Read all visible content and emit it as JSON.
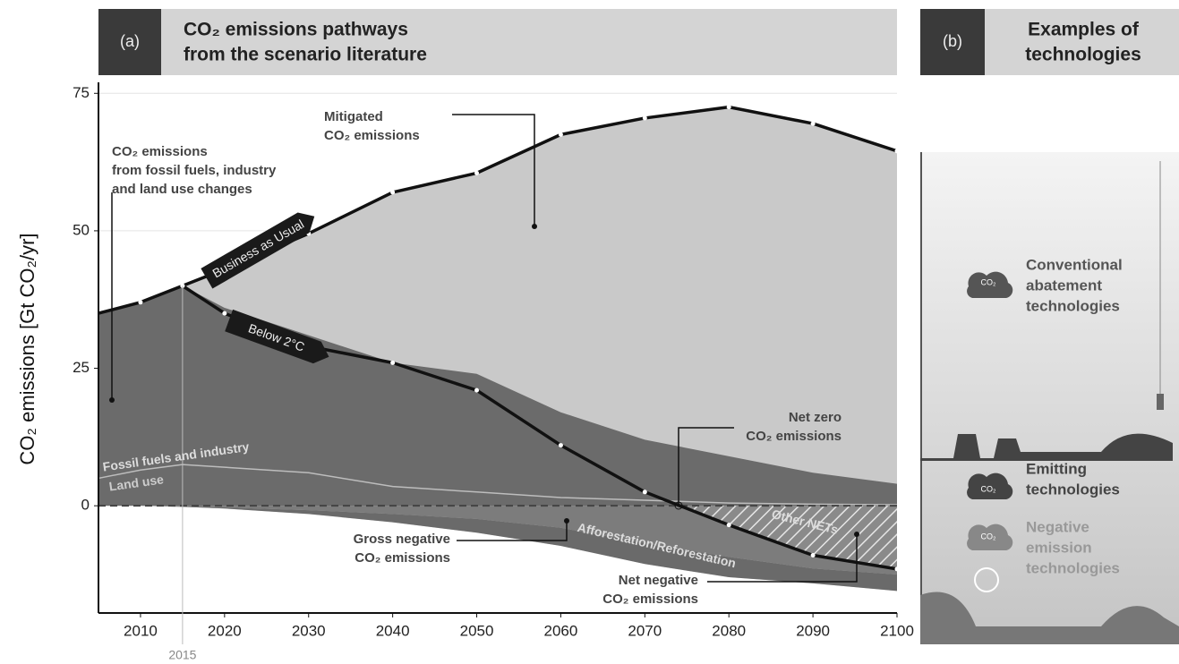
{
  "chart_data": {
    "type": "area",
    "panel_label": "(a)",
    "title": [
      "CO₂ emissions pathways",
      "from the scenario literature"
    ],
    "y_label": "CO₂ emissions [Gt CO₂/yr]",
    "x": [
      2005,
      2010,
      2015,
      2020,
      2030,
      2040,
      2050,
      2060,
      2070,
      2080,
      2090,
      2100
    ],
    "xlim": [
      2005,
      2100
    ],
    "xticks": [
      2010,
      2015,
      2020,
      2030,
      2040,
      2050,
      2060,
      2070,
      2080,
      2090,
      2100
    ],
    "ylim": [
      -19.5,
      77
    ],
    "yticks": [
      0,
      25,
      50,
      75
    ],
    "grid": true,
    "series": [
      {
        "name": "Business as Usual",
        "color": "#111111",
        "fill": "#c9c9c9",
        "values": [
          35,
          37,
          40,
          43,
          49.5,
          57,
          60.5,
          67.5,
          70.5,
          72.5,
          69.5,
          64.5
        ]
      },
      {
        "name": "Below 2°C",
        "color": "#111111",
        "values": [
          null,
          null,
          40,
          35,
          29,
          26,
          21,
          11,
          2.5,
          -3.5,
          -9,
          -11.5
        ]
      },
      {
        "name": "Fossil fuels and industry",
        "fill": "#6b6b6b",
        "values": [
          35,
          37,
          40,
          36,
          31,
          26,
          24,
          17,
          12,
          9,
          6,
          4
        ]
      },
      {
        "name": "Land use",
        "color": "#bdbdbd",
        "values": [
          5,
          6.5,
          7.5,
          7,
          6,
          3.5,
          2.5,
          1.5,
          1,
          0.5,
          0.3,
          0.2
        ]
      },
      {
        "name": "Other NETs",
        "fill": "#7c7c7c",
        "values": [
          0,
          0,
          -0.1,
          -0.3,
          -0.8,
          -1.5,
          -2.4,
          -4,
          -6.8,
          -9.3,
          -11.4,
          -12.5
        ]
      },
      {
        "name": "Afforestation/Reforestation",
        "fill": "#6a6a6a",
        "values": [
          0,
          0,
          -0.2,
          -0.5,
          -1.5,
          -3,
          -4.9,
          -7.3,
          -10.6,
          -13,
          -14.1,
          -15.5
        ]
      }
    ],
    "annotations": [
      [
        "Mitigated",
        "CO₂ emissions"
      ],
      [
        "CO₂ emissions",
        "from fossil fuels, industry",
        "and land use changes"
      ],
      [
        "Net zero",
        "CO₂ emissions"
      ],
      [
        "Gross negative",
        "CO₂ emissions"
      ],
      [
        "Net negative",
        "CO₂ emissions"
      ]
    ],
    "panel_b": {
      "label": "(b)",
      "title": [
        "Examples of",
        "technologies"
      ],
      "icon_label": "CO₂",
      "items": [
        [
          "Conventional",
          "abatement",
          "technologies"
        ],
        [
          "Emitting",
          "technologies"
        ],
        [
          "Negative",
          "emission",
          "technologies"
        ]
      ]
    }
  }
}
